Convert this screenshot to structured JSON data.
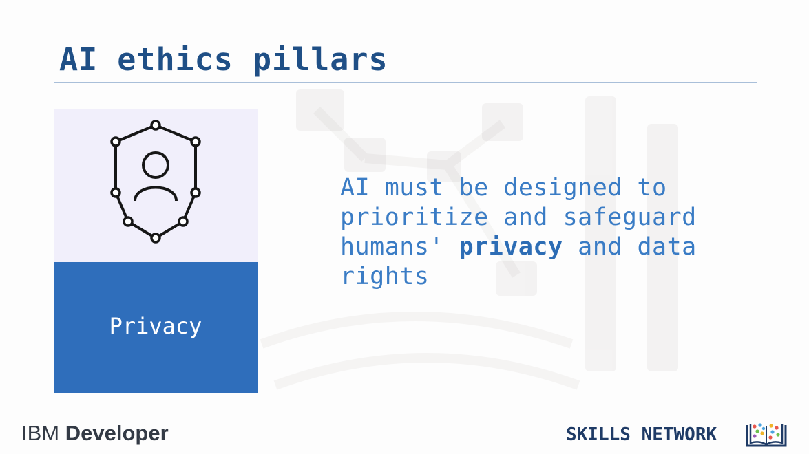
{
  "slide": {
    "title": "AI ethics pillars",
    "card": {
      "icon": "shield-person-icon",
      "label": "Privacy"
    },
    "statement": {
      "line1": "AI must be designed to",
      "line2": "prioritize and safeguard",
      "line3_pre": "humans' ",
      "line3_bold": "privacy",
      "line3_post": " and data",
      "line4": "rights"
    }
  },
  "footer": {
    "brand_regular": "IBM ",
    "brand_bold": "Developer",
    "skills_network": "SKILLS NETWORK",
    "skills_network_icon": "book-network-icon"
  },
  "colors": {
    "title": "#1f4f86",
    "statement": "#3a7cc5",
    "card_top": "#f1effb",
    "card_bottom": "#2f6ebb"
  }
}
